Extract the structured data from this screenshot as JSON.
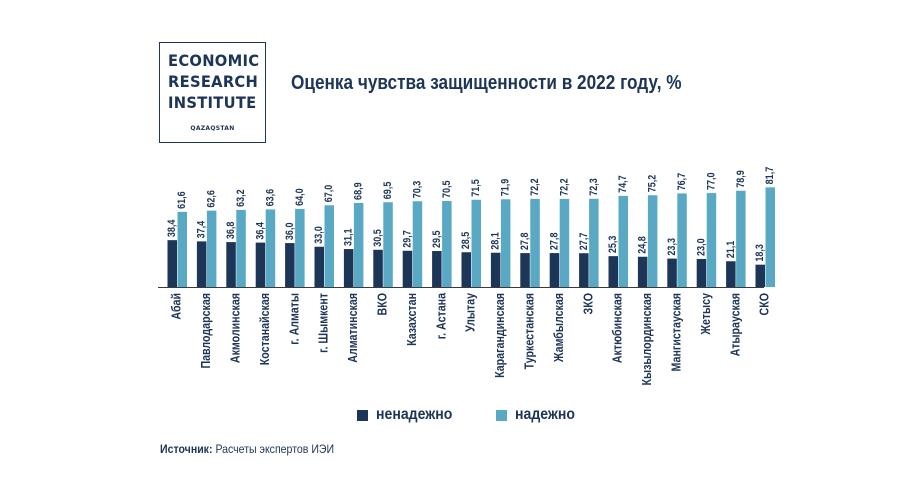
{
  "logo": {
    "line1": "ECONOMIC",
    "line2": "RESEARCH",
    "line3": "INSTITUTE",
    "sub": "QAZAQSTAN"
  },
  "legend": {
    "unreliable": "ненадежно",
    "reliable": "надежно"
  },
  "source": {
    "label": "Источник:",
    "text": "Расчеты экспертов ИЭИ"
  },
  "colors": {
    "dark": "#1d3557",
    "light": "#5aa9c4",
    "axis": "#3a3a3a"
  },
  "chart_data": {
    "type": "bar",
    "title": "Оценка чувства защищенности в 2022 году, %",
    "categories": [
      "Абай",
      "Павлодарская",
      "Акмолинская",
      "Костанайская",
      "г. Алматы",
      "г. Шымкент",
      "Алматинская",
      "ВКО",
      "Казахстан",
      "г. Астана",
      "Улытау",
      "Карагандинская",
      "Туркестанская",
      "Жамбылская",
      "ЗКО",
      "Актюбинская",
      "Кызылординская",
      "Мангистауская",
      "Жетысу",
      "Атырауская",
      "СКО"
    ],
    "series": [
      {
        "name": "ненадежно",
        "values": [
          38.4,
          37.4,
          36.8,
          36.4,
          36.0,
          33.0,
          31.1,
          30.5,
          29.7,
          29.5,
          28.5,
          28.1,
          27.8,
          27.8,
          27.7,
          25.3,
          24.8,
          23.3,
          23.0,
          21.1,
          18.3
        ],
        "labels": [
          "38,4",
          "37,4",
          "36,8",
          "36,4",
          "36,0",
          "33,0",
          "31,1",
          "30,5",
          "29,7",
          "29,5",
          "28,5",
          "28,1",
          "27,8",
          "27,8",
          "27,7",
          "25,3",
          "24,8",
          "23,3",
          "23,0",
          "21,1",
          "18,3"
        ]
      },
      {
        "name": "надежно",
        "values": [
          61.6,
          62.6,
          63.2,
          63.6,
          64.0,
          67.0,
          68.9,
          69.5,
          70.3,
          70.5,
          71.5,
          71.9,
          72.2,
          72.2,
          72.3,
          74.7,
          75.2,
          76.7,
          77.0,
          78.9,
          81.7
        ],
        "labels": [
          "61,6",
          "62,6",
          "63,2",
          "63,6",
          "64,0",
          "67,0",
          "68,9",
          "69,5",
          "70,3",
          "70,5",
          "71,5",
          "71,9",
          "72,2",
          "72,2",
          "72,3",
          "74,7",
          "75,2",
          "76,7",
          "77,0",
          "78,9",
          "81,7"
        ]
      }
    ],
    "ylim": [
      0,
      100
    ],
    "grid": false,
    "legend_position": "bottom"
  }
}
